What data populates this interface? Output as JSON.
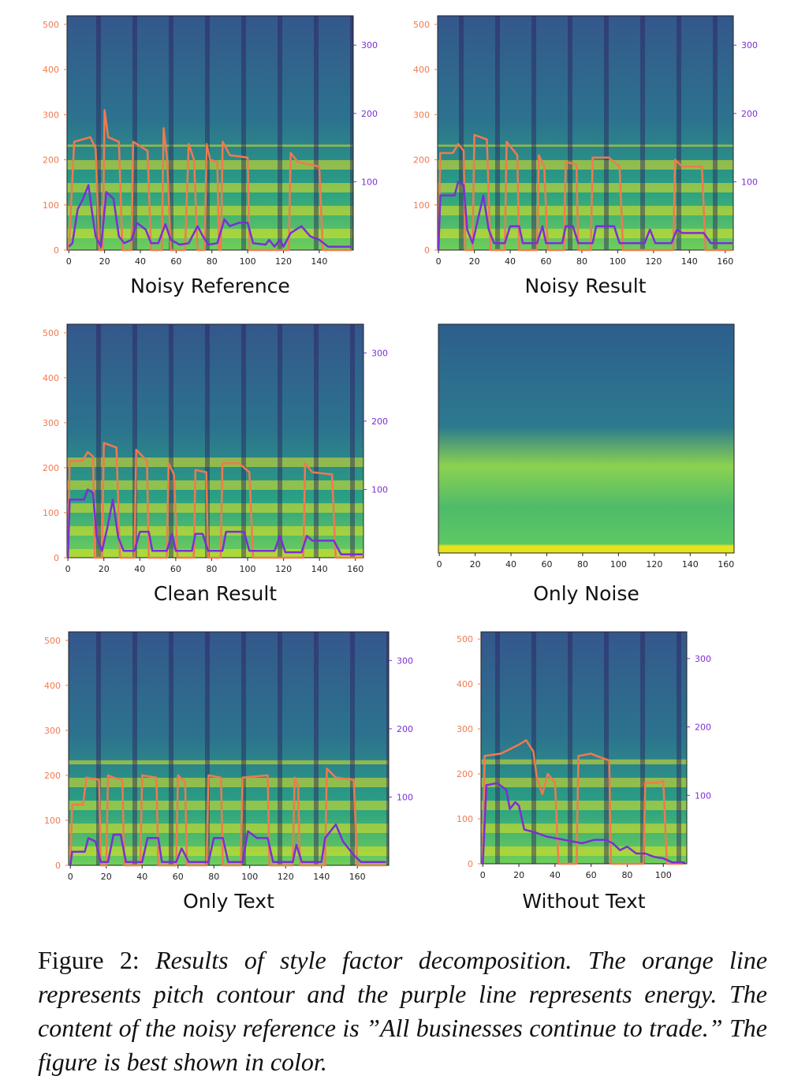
{
  "figure": {
    "pitch_color": "#ef7a4f",
    "energy_color": "#7b2fd4",
    "panels": [
      {
        "title": "Noisy Reference",
        "xlim": [
          -1,
          159
        ],
        "ylim": [
          0,
          519
        ],
        "y2lim": [
          0,
          343
        ],
        "xticks": [
          0,
          20,
          40,
          60,
          80,
          100,
          120,
          140
        ],
        "yticks": [
          0,
          100,
          200,
          300,
          400,
          500
        ],
        "y2ticks": [
          100,
          200,
          300
        ],
        "pitch": {
          "x": [
            0,
            3,
            12,
            15,
            17,
            19,
            20,
            22,
            28,
            30,
            35,
            36,
            44,
            46,
            52,
            53,
            55,
            57,
            65,
            67,
            70,
            72,
            76,
            77,
            79,
            83,
            84,
            85,
            86,
            90,
            100,
            101,
            123,
            124,
            128,
            140,
            142,
            158
          ],
          "values": [
            0,
            240,
            250,
            225,
            0,
            0,
            310,
            250,
            240,
            0,
            0,
            240,
            220,
            0,
            0,
            270,
            200,
            0,
            0,
            235,
            200,
            0,
            0,
            235,
            200,
            195,
            0,
            0,
            240,
            210,
            205,
            0,
            0,
            215,
            195,
            185,
            0,
            0
          ]
        },
        "energy": {
          "x": [
            0,
            2,
            5,
            8,
            11,
            13,
            15,
            18,
            21,
            25,
            28,
            31,
            35,
            38,
            43,
            46,
            50,
            54,
            57,
            62,
            67,
            72,
            75,
            78,
            83,
            87,
            90,
            95,
            100,
            103,
            110,
            112,
            115,
            118,
            120,
            124,
            130,
            135,
            140,
            145,
            158
          ],
          "values": [
            5,
            10,
            60,
            75,
            95,
            55,
            20,
            5,
            85,
            75,
            20,
            10,
            15,
            40,
            30,
            10,
            10,
            38,
            15,
            8,
            10,
            35,
            20,
            8,
            10,
            45,
            35,
            40,
            40,
            10,
            8,
            15,
            5,
            15,
            5,
            25,
            35,
            20,
            15,
            5,
            5
          ]
        }
      },
      {
        "title": "Noisy Result",
        "xlim": [
          -0.5,
          164.5
        ],
        "ylim": [
          0,
          519
        ],
        "y2lim": [
          0,
          343
        ],
        "xticks": [
          0,
          20,
          40,
          60,
          80,
          100,
          120,
          140,
          160
        ],
        "yticks": [
          0,
          100,
          200,
          300,
          400,
          500
        ],
        "y2ticks": [
          100,
          200,
          300
        ],
        "pitch": {
          "x": [
            0,
            1,
            8,
            11,
            14,
            15,
            19,
            20,
            27,
            29,
            37,
            38,
            44,
            45,
            55,
            56,
            59,
            61,
            70,
            71,
            77,
            78,
            85,
            86,
            95,
            101,
            103,
            131,
            132,
            136,
            147,
            149,
            164
          ],
          "values": [
            0,
            215,
            215,
            235,
            220,
            0,
            0,
            255,
            245,
            0,
            0,
            240,
            210,
            0,
            0,
            210,
            185,
            0,
            0,
            195,
            190,
            0,
            0,
            205,
            205,
            185,
            0,
            0,
            200,
            185,
            185,
            0,
            0
          ]
        },
        "energy": {
          "x": [
            0,
            1,
            9,
            11,
            14,
            16,
            19,
            22,
            25,
            28,
            31,
            37,
            40,
            45,
            47,
            55,
            58,
            60,
            69,
            71,
            75,
            78,
            86,
            88,
            98,
            101,
            115,
            118,
            121,
            130,
            133,
            136,
            138,
            148,
            152,
            164
          ],
          "values": [
            0,
            80,
            80,
            100,
            95,
            30,
            10,
            45,
            80,
            30,
            10,
            10,
            35,
            35,
            10,
            10,
            35,
            10,
            10,
            35,
            35,
            10,
            10,
            35,
            35,
            10,
            10,
            30,
            10,
            10,
            30,
            25,
            25,
            25,
            10,
            10
          ]
        }
      },
      {
        "title": "Clean Result",
        "xlim": [
          -0.5,
          164.5
        ],
        "ylim": [
          0,
          519
        ],
        "y2lim": [
          0,
          342
        ],
        "xticks": [
          0,
          20,
          40,
          60,
          80,
          100,
          120,
          140,
          160
        ],
        "yticks": [
          0,
          100,
          200,
          300,
          400,
          500
        ],
        "y2ticks": [
          100,
          200,
          300
        ],
        "pitch": {
          "x": [
            0,
            1,
            8,
            11,
            14,
            15,
            19,
            20,
            27,
            29,
            37,
            38,
            44,
            45,
            55,
            56,
            59,
            61,
            70,
            71,
            77,
            78,
            85,
            86,
            95,
            101,
            103,
            131,
            132,
            136,
            147,
            149,
            164
          ],
          "values": [
            0,
            215,
            215,
            235,
            225,
            0,
            0,
            255,
            245,
            0,
            0,
            240,
            215,
            0,
            0,
            210,
            185,
            0,
            0,
            195,
            190,
            0,
            0,
            210,
            210,
            190,
            0,
            0,
            210,
            190,
            185,
            0,
            0
          ]
        },
        "energy": {
          "x": [
            0,
            1,
            9,
            11,
            14,
            16,
            19,
            22,
            25,
            28,
            31,
            37,
            40,
            45,
            47,
            55,
            58,
            60,
            69,
            71,
            75,
            78,
            86,
            88,
            98,
            101,
            115,
            118,
            121,
            130,
            133,
            136,
            138,
            148,
            152,
            164
          ],
          "values": [
            0,
            85,
            85,
            100,
            95,
            30,
            10,
            45,
            85,
            30,
            10,
            10,
            38,
            38,
            10,
            10,
            35,
            10,
            10,
            35,
            35,
            10,
            10,
            38,
            38,
            10,
            10,
            32,
            8,
            8,
            32,
            25,
            25,
            25,
            5,
            5
          ]
        }
      },
      {
        "title": "Only Noise",
        "xlim": [
          -0.5,
          164.5
        ],
        "xticks": [
          0,
          20,
          40,
          60,
          80,
          100,
          120,
          140,
          160
        ]
      },
      {
        "title": "Only Text",
        "xlim": [
          -1,
          177.5
        ],
        "ylim": [
          0,
          519
        ],
        "y2lim": [
          0,
          342
        ],
        "xticks": [
          0,
          20,
          40,
          60,
          80,
          100,
          120,
          140,
          160
        ],
        "yticks": [
          0,
          100,
          200,
          300,
          400,
          500
        ],
        "y2ticks": [
          100,
          200,
          300
        ],
        "pitch": {
          "x": [
            0,
            1,
            7,
            9,
            16,
            17,
            20,
            21,
            24,
            29,
            30,
            39,
            40,
            48,
            49,
            59,
            60,
            64,
            65,
            76,
            77,
            84,
            85,
            95,
            96,
            110,
            111,
            124,
            125,
            127,
            128,
            142,
            143,
            148,
            158,
            160,
            176
          ],
          "values": [
            0,
            135,
            135,
            195,
            190,
            0,
            0,
            200,
            195,
            190,
            0,
            0,
            200,
            195,
            0,
            0,
            200,
            185,
            0,
            0,
            200,
            195,
            0,
            0,
            195,
            200,
            0,
            0,
            195,
            175,
            0,
            0,
            215,
            195,
            190,
            0,
            0
          ]
        },
        "energy": {
          "x": [
            0,
            1,
            8,
            10,
            14,
            17,
            21,
            24,
            28,
            31,
            40,
            43,
            49,
            51,
            59,
            62,
            66,
            77,
            80,
            85,
            88,
            96,
            99,
            104,
            110,
            113,
            124,
            126,
            129,
            140,
            142,
            148,
            152,
            158,
            162,
            176
          ],
          "values": [
            0,
            20,
            20,
            40,
            35,
            5,
            5,
            45,
            45,
            5,
            5,
            40,
            40,
            5,
            5,
            25,
            5,
            5,
            40,
            40,
            5,
            5,
            50,
            40,
            40,
            5,
            5,
            30,
            5,
            5,
            40,
            60,
            35,
            15,
            5,
            5
          ]
        }
      },
      {
        "title": "Without Text",
        "xlim": [
          -1,
          113
        ],
        "ylim": [
          0,
          516
        ],
        "y2lim": [
          0,
          339
        ],
        "xticks": [
          0,
          20,
          40,
          60,
          80,
          100
        ],
        "yticks": [
          0,
          100,
          200,
          300,
          400,
          500
        ],
        "y2ticks": [
          100,
          200,
          300
        ],
        "pitch": {
          "x": [
            0,
            1,
            10,
            20,
            24,
            28,
            30,
            33,
            36,
            40,
            42,
            52,
            53,
            60,
            63,
            70,
            71,
            89,
            90,
            97,
            100,
            102,
            111
          ],
          "values": [
            0,
            240,
            245,
            265,
            275,
            250,
            190,
            155,
            200,
            180,
            0,
            0,
            240,
            245,
            240,
            230,
            0,
            0,
            180,
            180,
            185,
            0,
            0
          ]
        },
        "energy": {
          "x": [
            0,
            2,
            8,
            13,
            15,
            18,
            20,
            23,
            30,
            35,
            45,
            55,
            62,
            68,
            72,
            76,
            80,
            85,
            90,
            95,
            100,
            105,
            112
          ],
          "values": [
            0,
            115,
            118,
            108,
            80,
            90,
            85,
            50,
            45,
            40,
            35,
            30,
            35,
            35,
            30,
            20,
            25,
            15,
            15,
            10,
            8,
            2,
            2
          ]
        }
      }
    ],
    "caption": {
      "label": "Figure 2:",
      "text": "Results of style factor decomposition. The orange line represents pitch contour and the purple line represents energy. The content of the noisy reference is ”All businesses continue to trade.” The figure is best shown in color."
    }
  }
}
